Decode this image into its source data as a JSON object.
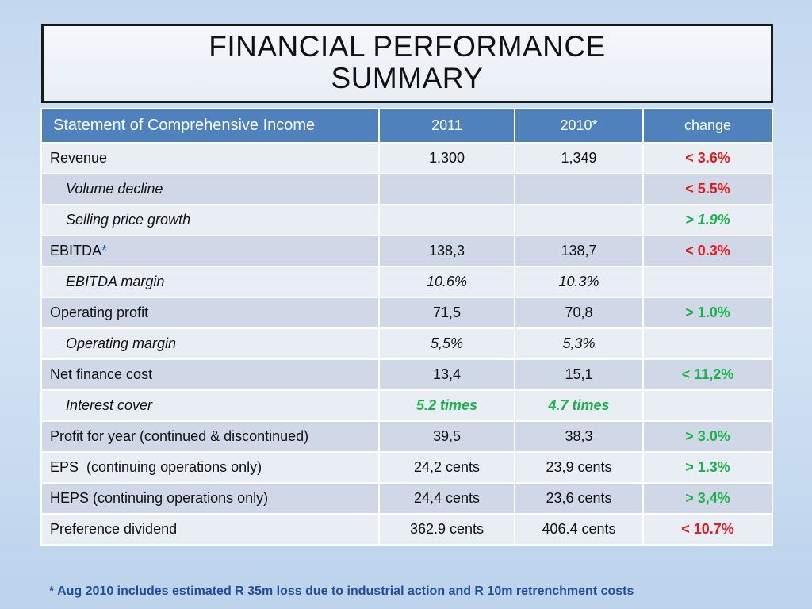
{
  "title": {
    "line1": "FINANCIAL PERFORMANCE",
    "line2": "SUMMARY"
  },
  "table": {
    "headers": [
      "Statement of Comprehensive Income",
      "2011",
      "2010*",
      "change"
    ],
    "rows": [
      {
        "label": "Revenue",
        "y2011": "1,300",
        "y2010": "1,349",
        "change": "< 3.6%",
        "change_color": "red"
      },
      {
        "label": "Volume decline",
        "y2011": "",
        "y2010": "",
        "change": "< 5.5%",
        "change_color": "red"
      },
      {
        "label": "Selling price growth",
        "y2011": "",
        "y2010": "",
        "change": "> 1.9%",
        "change_color": "green"
      },
      {
        "label": "EBITDA",
        "label_suffix": "*",
        "y2011": "138,3",
        "y2010": "138,7",
        "change": "< 0.3%",
        "change_color": "red"
      },
      {
        "label": "EBITDA margin",
        "y2011": "10.6%",
        "y2010": "10.3%",
        "change": ""
      },
      {
        "label": "Operating profit",
        "y2011": "71,5",
        "y2010": "70,8",
        "change": "> 1.0%",
        "change_color": "green"
      },
      {
        "label": "Operating margin",
        "y2011": "5,5%",
        "y2010": "5,3%",
        "change": ""
      },
      {
        "label": "Net finance cost",
        "y2011": "13,4",
        "y2010": "15,1",
        "change": "< 11,2%",
        "change_color": "green"
      },
      {
        "label": "Interest cover",
        "y2011": "5.2 times",
        "y2010": "4.7 times",
        "change": ""
      },
      {
        "label": "Profit for year (continued & discontinued)",
        "y2011": "39,5",
        "y2010": "38,3",
        "change": "> 3.0%",
        "change_color": "green"
      },
      {
        "label": "EPS  (continuing operations only)",
        "y2011": "24,2 cents",
        "y2010": "23,9 cents",
        "change": "> 1.3%",
        "change_color": "green"
      },
      {
        "label": "HEPS (continuing operations only)",
        "y2011": "24,4 cents",
        "y2010": "23,6 cents",
        "change": "> 3,4%",
        "change_color": "green"
      },
      {
        "label": "Preference dividend",
        "y2011": "362.9 cents",
        "y2010": "406.4 cents",
        "change": "< 10.7%",
        "change_color": "red"
      }
    ]
  },
  "footnote": "* Aug 2010 includes estimated R 35m loss due to industrial action and R 10m retrenchment costs",
  "colors": {
    "header_blue": "#4f81bd",
    "red": "#e31b1b",
    "green": "#1bb24b",
    "footnote_blue": "#1f4e9c"
  }
}
